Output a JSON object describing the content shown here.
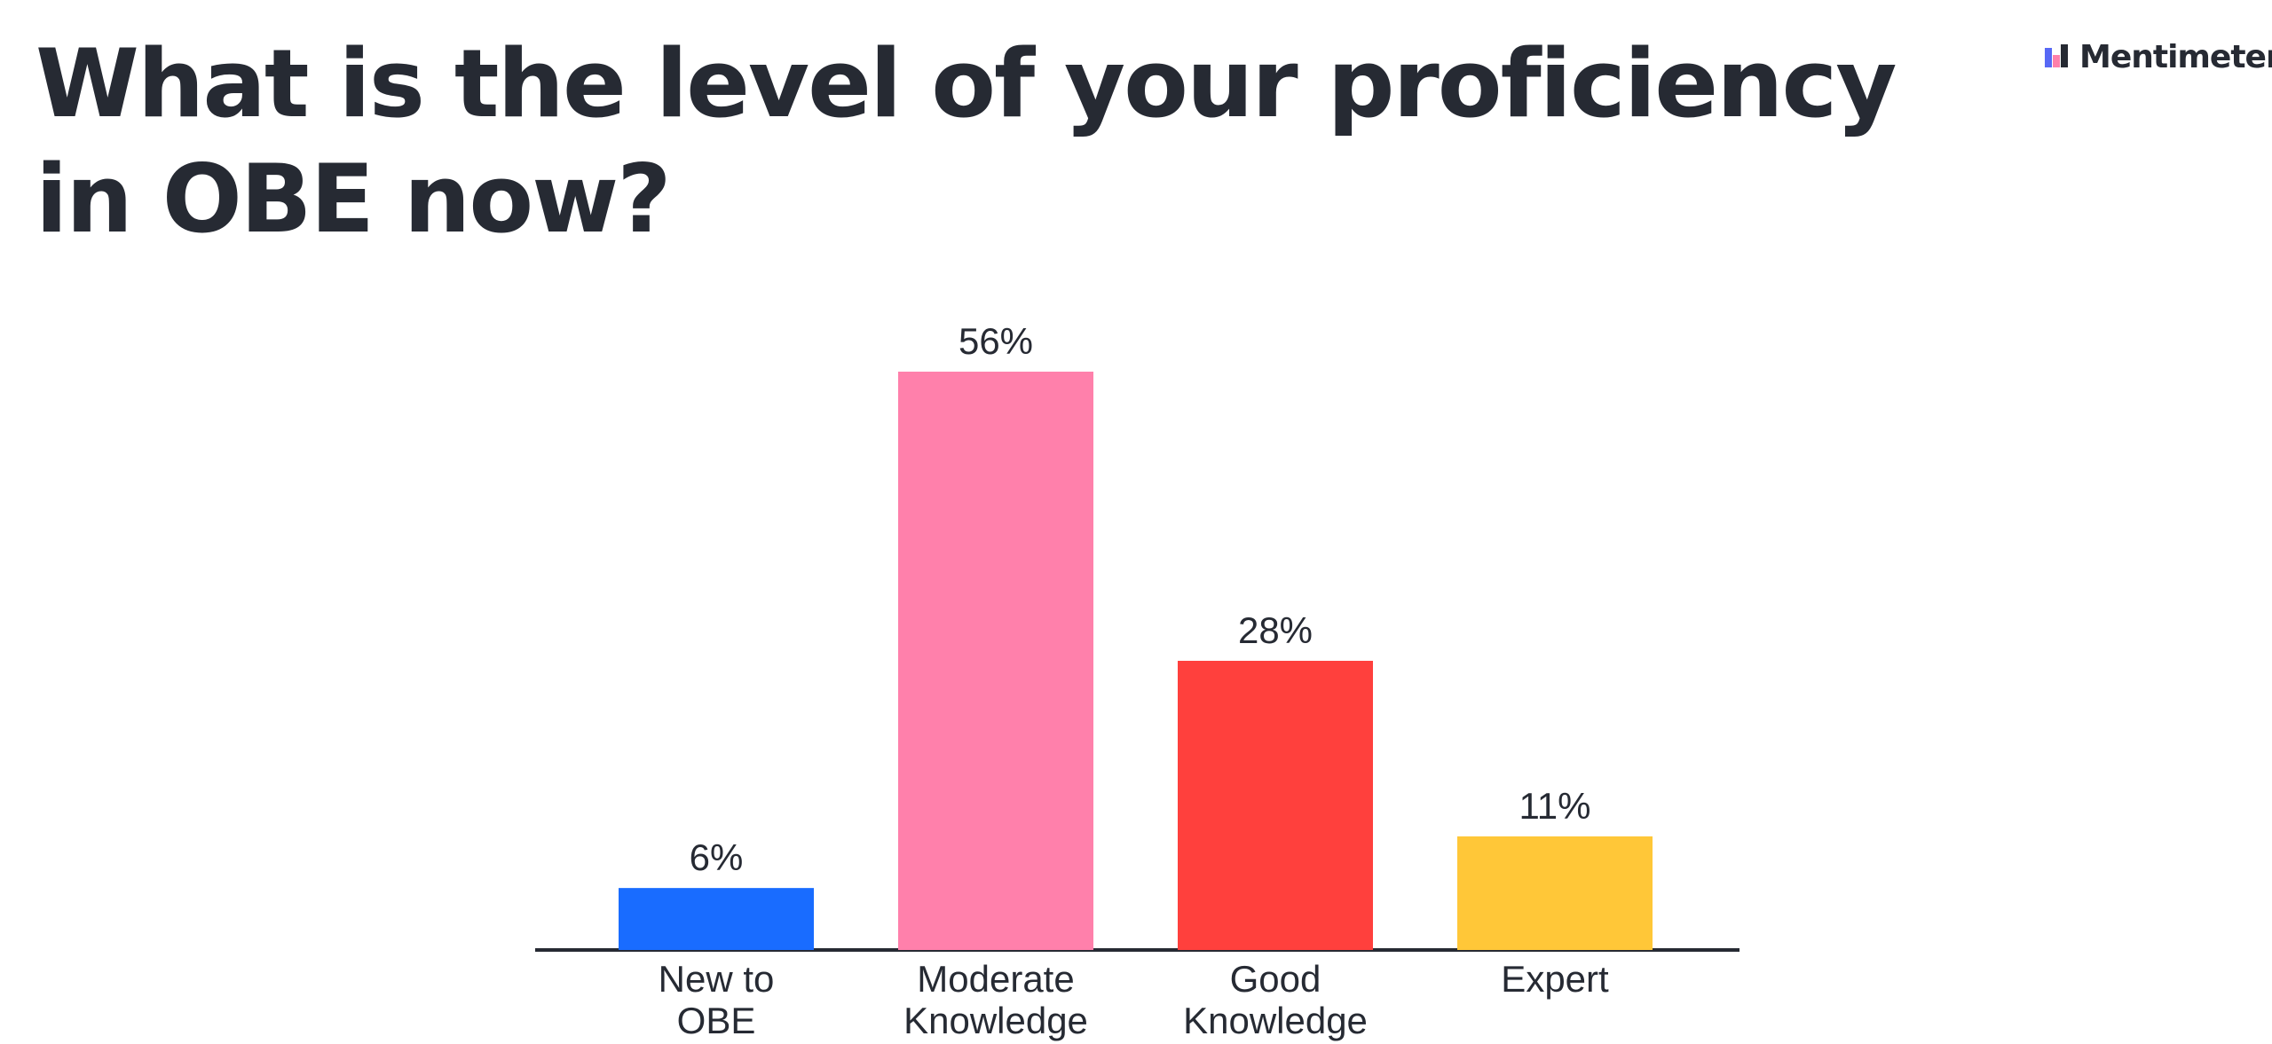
{
  "brand": "Mentimeter",
  "chart_data": {
    "type": "bar",
    "title": "What is the level of your proficiency in OBE now?",
    "categories": [
      "New to OBE",
      "Moderate Knowledge",
      "Good Knowledge",
      "Expert"
    ],
    "values": [
      6,
      56,
      28,
      11
    ],
    "value_labels": [
      "6%",
      "56%",
      "28%",
      "11%"
    ],
    "colors": [
      "#196cff",
      "#ff80ab",
      "#ff403d",
      "#ffc738"
    ]
  }
}
